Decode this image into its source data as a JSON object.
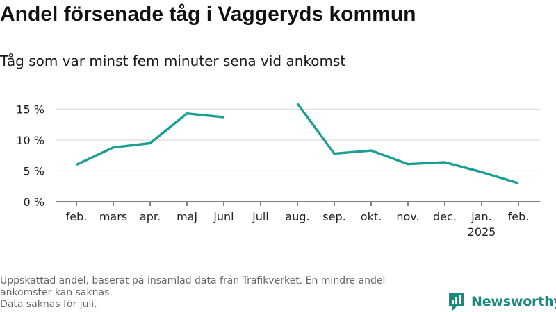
{
  "header": {
    "title": "Andel försenade tåg i Vaggeryds kommun",
    "subtitle": "Tåg som var minst fem minuter sena vid ankomst"
  },
  "chart_data": {
    "type": "line",
    "title": "Andel försenade tåg i Vaggeryds kommun",
    "subtitle": "Tåg som var minst fem minuter sena vid ankomst",
    "xlabel": "",
    "ylabel": "",
    "categories": [
      "feb.",
      "mars",
      "apr.",
      "maj",
      "juni",
      "juli",
      "aug.",
      "sep.",
      "okt.",
      "nov.",
      "dec.",
      "jan.",
      "feb."
    ],
    "year_label": {
      "under_category_index": 11,
      "text": "2025"
    },
    "series": [
      {
        "values": [
          6.0,
          8.8,
          9.5,
          14.3,
          13.7,
          null,
          15.9,
          7.8,
          8.3,
          6.1,
          6.4,
          4.8,
          3.0
        ]
      }
    ],
    "yticks": [
      {
        "value": 0,
        "label": "0 %"
      },
      {
        "value": 5,
        "label": "5 %"
      },
      {
        "value": 10,
        "label": "10 %"
      },
      {
        "value": 15,
        "label": "15 %"
      }
    ],
    "ylim": [
      0,
      16.5
    ],
    "grid": true,
    "legend": "none",
    "line_color": "#1b9e94",
    "grid_color": "#dddddd",
    "axis_color": "#333333"
  },
  "footer": {
    "note_lines": [
      "Uppskattad andel, baserat på insamlad data från Trafikverket. En mindre andel",
      "ankomster kan saknas.",
      "Data saknas för juli."
    ],
    "brand": "Newsworthy",
    "brand_color": "#1b8a7e"
  }
}
